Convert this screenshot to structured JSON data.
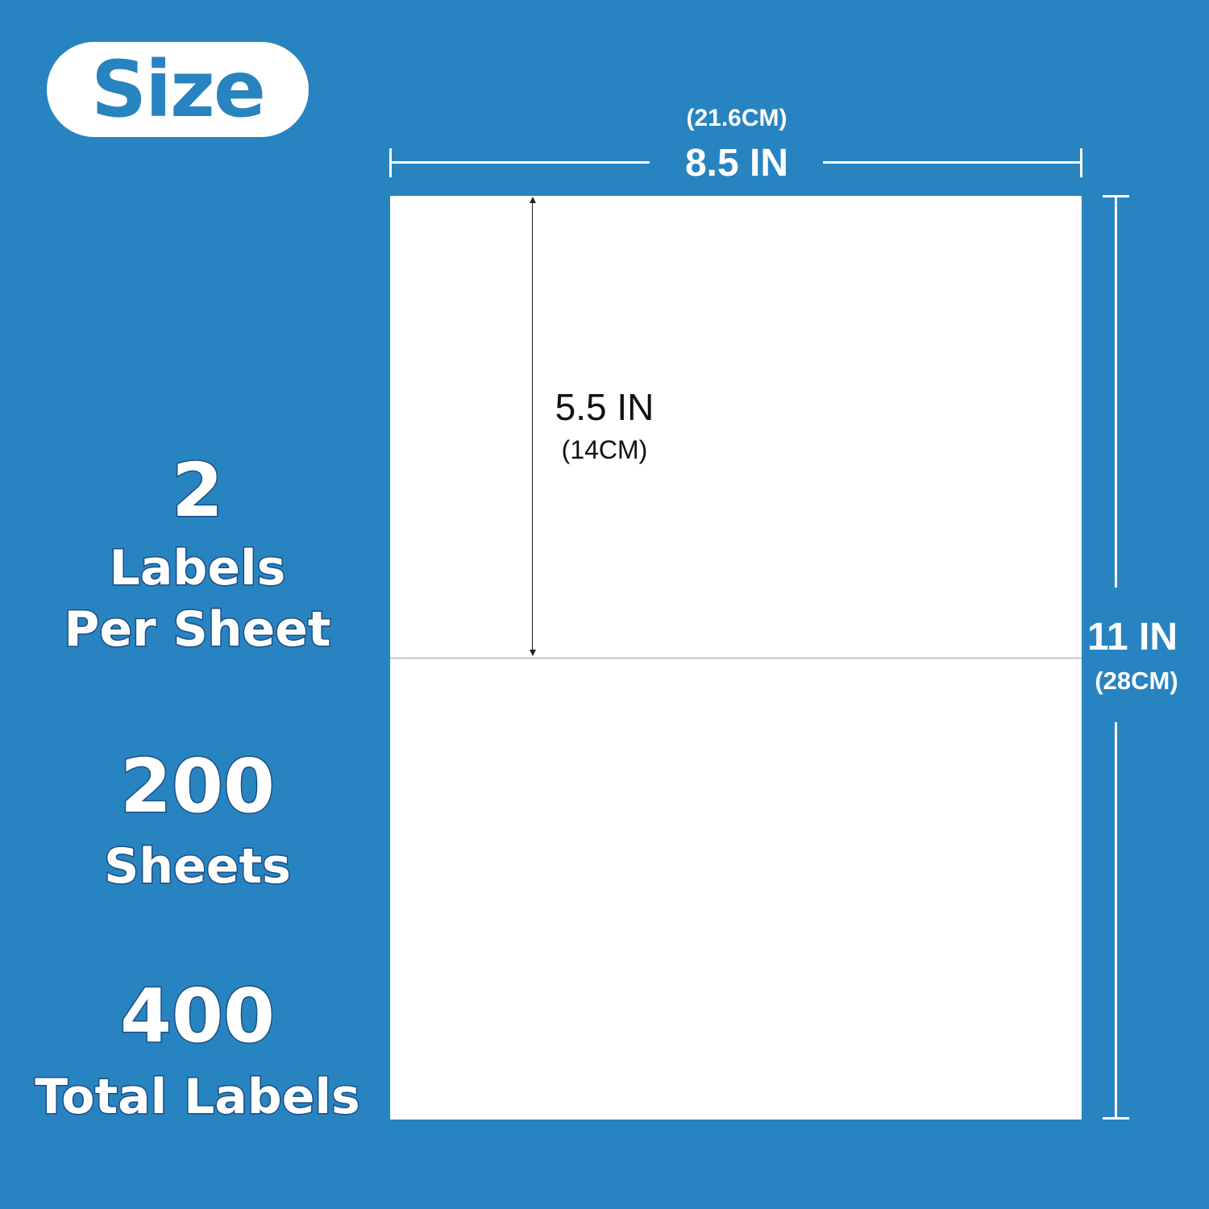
{
  "badge": {
    "label": "Size"
  },
  "stats": [
    {
      "number": "2",
      "label_line1": "Labels",
      "label_line2": "Per Sheet"
    },
    {
      "number": "200",
      "label_line1": "Sheets"
    },
    {
      "number": "400",
      "label_line1": "Total Labels"
    }
  ],
  "dimensions": {
    "width_metric": "(21.6CM)",
    "width_imperial": "8.5 IN",
    "height_imperial": "11 IN",
    "height_metric": "(28CM)",
    "label_height_imperial": "5.5 IN",
    "label_height_metric": "(14CM)"
  },
  "colors": {
    "background": "#2884c0",
    "sheet": "#ffffff",
    "text_outline": "#1a4d86"
  }
}
